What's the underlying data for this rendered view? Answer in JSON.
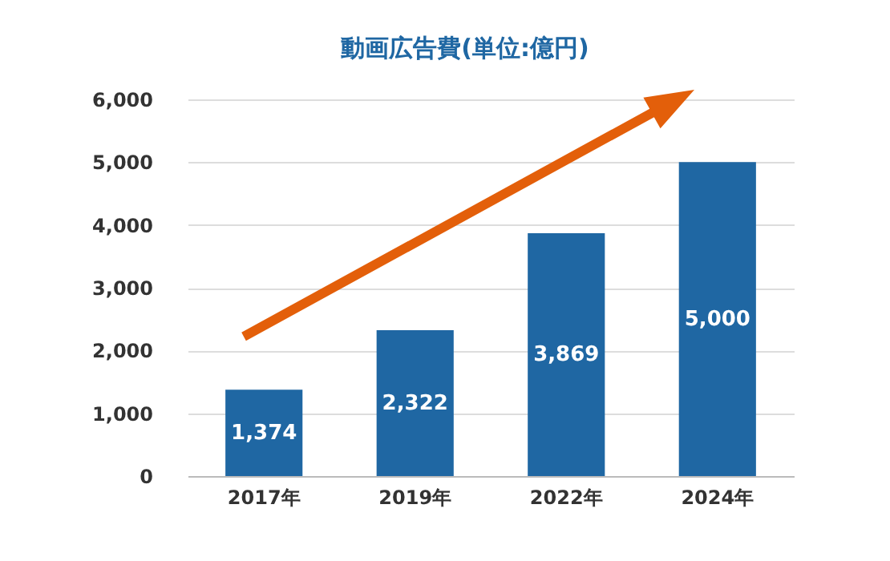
{
  "chart_data": {
    "type": "bar",
    "title": "動画広告費(単位:億円)",
    "categories": [
      "2017年",
      "2019年",
      "2022年",
      "2024年"
    ],
    "values": [
      1374,
      2322,
      3869,
      5000
    ],
    "color": "#1f67a3",
    "ylim": [
      0,
      6000
    ],
    "yticks": [
      0,
      {
        "value": 1000,
        "label": "1,000"
      },
      {
        "value": 2000,
        "label": "2,000"
      },
      {
        "value": 3000,
        "label": "3,000"
      },
      {
        "value": 4000,
        "label": "4,000"
      },
      {
        "value": 5000,
        "label": "5,000"
      },
      {
        "value": 6000,
        "label": "6,000"
      }
    ],
    "grid": true,
    "data_labels": true,
    "value_labels": [
      "1,374",
      "2,322",
      "3,869",
      "5,000"
    ]
  }
}
